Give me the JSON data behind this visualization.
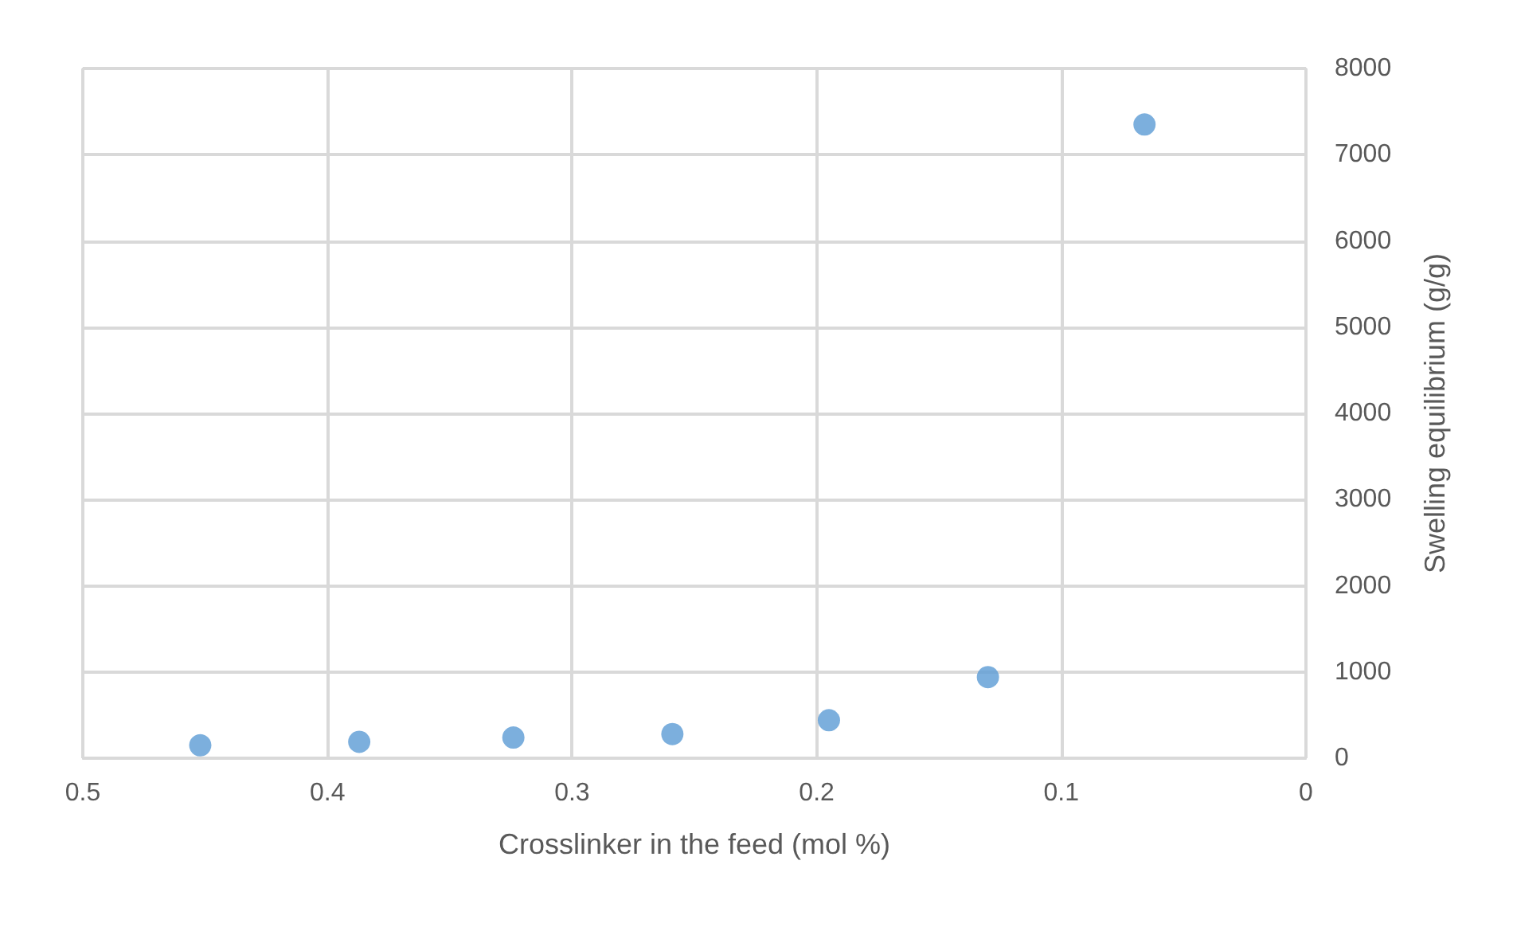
{
  "chart_data": {
    "type": "scatter",
    "xlabel": "Crosslinker in the feed (mol %)",
    "ylabel": "Swelling equilibrium (g/g)",
    "x": [
      0.452,
      0.387,
      0.324,
      0.259,
      0.195,
      0.13,
      0.066
    ],
    "series": [
      {
        "color": "#5b9bd5",
        "values": [
          150,
          190,
          240,
          280,
          440,
          940,
          7350
        ]
      }
    ],
    "xlim": [
      0.5,
      0
    ],
    "xticks": [
      0.5,
      0.4,
      0.3,
      0.2,
      0.1,
      0
    ],
    "ylim": [
      0,
      8000
    ],
    "yticks": [
      0,
      1000,
      2000,
      3000,
      4000,
      5000,
      6000,
      7000,
      8000
    ],
    "grid": true,
    "marker": "circle"
  }
}
